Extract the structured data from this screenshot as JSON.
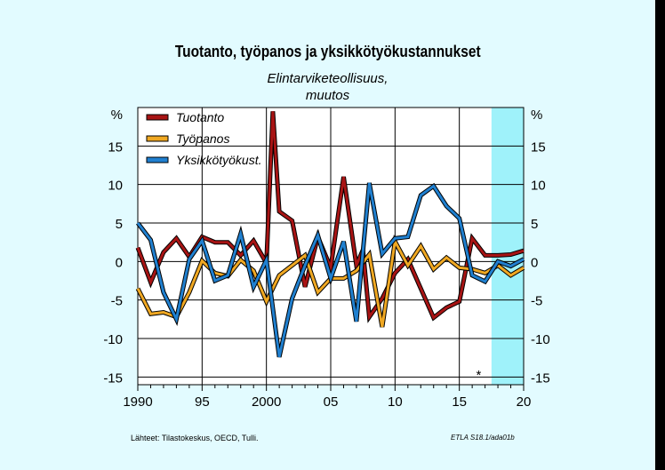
{
  "title": "Tuotanto, työpanos ja yksikkötyökustannukset",
  "subtitle_line1": "Elintarviketeollisuus,",
  "subtitle_line2": "muutos",
  "source": "Lähteet:  Tilastokeskus, OECD, Tulli.",
  "code": "ETLA S18.1/ada01b",
  "forecast_marker": "*",
  "chart_data": {
    "type": "line",
    "title": "Tuotanto, työpanos ja yksikkötyökustannukset",
    "ylabel_left": "%",
    "ylabel_right": "%",
    "ylim": [
      -16,
      20
    ],
    "xlim": [
      1990,
      2020
    ],
    "yticks": [
      -15,
      -10,
      -5,
      0,
      5,
      10,
      15
    ],
    "xticks": [
      1990,
      1995,
      2000,
      2005,
      2010,
      2015,
      2020
    ],
    "xtick_labels": [
      "1990",
      "95",
      "2000",
      "05",
      "10",
      "15",
      "20"
    ],
    "forecast_from": 2017.5,
    "legend_placement": "top-left",
    "series": [
      {
        "name": "Tuotanto",
        "color": "#a81414",
        "x": [
          1990,
          1991,
          1992,
          1993,
          1994,
          1995,
          1996,
          1997,
          1998,
          1999,
          2000,
          2000.5,
          2001,
          2002,
          2003,
          2004,
          2005,
          2006,
          2007,
          2007.5,
          2008,
          2009,
          2010,
          2011,
          2012,
          2013,
          2014,
          2015,
          2016,
          2017,
          2018,
          2019,
          2020
        ],
        "values": [
          1.8,
          -2.7,
          1.2,
          3.0,
          0.6,
          3.2,
          2.5,
          2.5,
          0.8,
          2.7,
          -0.2,
          19.5,
          6.5,
          5.3,
          -3.3,
          3.2,
          -0.8,
          11.0,
          -0.5,
          1.5,
          -7.2,
          -4.8,
          -1.5,
          0.3,
          -3.5,
          -7.3,
          -6.0,
          -5.2,
          3.0,
          0.8,
          0.8,
          0.9,
          1.4
        ]
      },
      {
        "name": "Työpanos",
        "color": "#f0a822",
        "x": [
          1990,
          1991,
          1992,
          1993,
          1994,
          1995,
          1996,
          1997,
          1998,
          1999,
          2000,
          2001,
          2002,
          2003,
          2004,
          2005,
          2006,
          2007,
          2008,
          2009,
          2010,
          2011,
          2012,
          2013,
          2014,
          2015,
          2016,
          2017,
          2018,
          2019,
          2020
        ],
        "values": [
          -3.5,
          -6.8,
          -6.6,
          -7.2,
          -4.0,
          0.1,
          -1.5,
          -1.9,
          0.2,
          -1.2,
          -5.2,
          -1.8,
          -0.5,
          0.8,
          -4.0,
          -2.2,
          -2.2,
          -1.2,
          0.9,
          -8.5,
          2.6,
          -0.5,
          2.0,
          -1.0,
          0.5,
          -0.8,
          -1.0,
          -1.5,
          -0.5,
          -1.8,
          -0.8
        ]
      },
      {
        "name": "Yksikkötyökust.",
        "color": "#2080d0",
        "x": [
          1990,
          1991,
          1992,
          1993,
          1994,
          1995,
          1996,
          1997,
          1998,
          1999,
          2000,
          2001,
          2002,
          2003,
          2004,
          2005,
          2006,
          2007,
          2008,
          2009,
          2010,
          2011,
          2012,
          2013,
          2014,
          2015,
          2016,
          2017,
          2018,
          2019,
          2020
        ],
        "values": [
          5.0,
          2.8,
          -4.0,
          -7.5,
          0.3,
          2.7,
          -2.5,
          -1.8,
          3.6,
          -3.3,
          0.2,
          -12.4,
          -4.8,
          -0.5,
          3.4,
          -2.2,
          2.6,
          -7.8,
          10.2,
          1.0,
          3.0,
          3.2,
          8.6,
          9.8,
          7.2,
          5.6,
          -1.8,
          -2.6,
          0.0,
          -0.6,
          0.3
        ]
      }
    ]
  }
}
